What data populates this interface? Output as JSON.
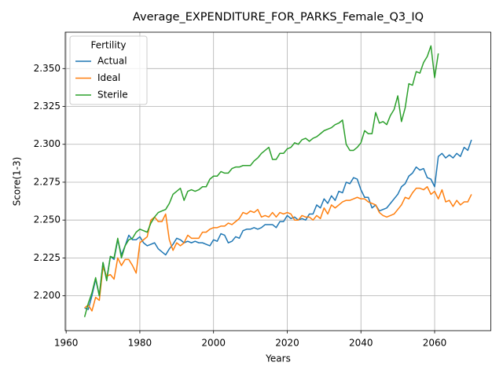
{
  "chart_data": {
    "type": "line",
    "title": "Average_EXPENDITURE_FOR_PARKS_Female_Q3_IQ",
    "xlabel": "Years",
    "ylabel": "Score(1-3)",
    "x": [
      1965,
      1966,
      1967,
      1968,
      1969,
      1970,
      1971,
      1972,
      1973,
      1974,
      1975,
      1976,
      1977,
      1978,
      1979,
      1980,
      1981,
      1982,
      1983,
      1984,
      1985,
      1986,
      1987,
      1988,
      1989,
      1990,
      1991,
      1992,
      1993,
      1994,
      1995,
      1996,
      1997,
      1998,
      1999,
      2000,
      2001,
      2002,
      2003,
      2004,
      2005,
      2006,
      2007,
      2008,
      2009,
      2010,
      2011,
      2012,
      2013,
      2014,
      2015,
      2016,
      2017,
      2018,
      2019,
      2020,
      2021,
      2022,
      2023,
      2024,
      2025,
      2026,
      2027,
      2028,
      2029,
      2030,
      2031,
      2032,
      2033,
      2034,
      2035,
      2036,
      2037,
      2038,
      2039,
      2040,
      2041,
      2042,
      2043,
      2044,
      2045,
      2046,
      2047,
      2048,
      2049,
      2050,
      2051,
      2052,
      2053,
      2054,
      2055,
      2056,
      2057,
      2058,
      2059,
      2060,
      2061,
      2062,
      2063,
      2064,
      2065,
      2066,
      2067,
      2068,
      2069,
      2070
    ],
    "series": [
      {
        "name": "Actual",
        "color": "#1f77b4",
        "values": [
          2.192,
          2.191,
          2.2,
          2.211,
          2.2,
          2.222,
          2.211,
          2.226,
          2.224,
          2.237,
          2.227,
          2.233,
          2.24,
          2.237,
          2.237,
          2.239,
          2.235,
          2.233,
          2.234,
          2.235,
          2.231,
          2.229,
          2.227,
          2.231,
          2.234,
          2.238,
          2.237,
          2.235,
          2.236,
          2.235,
          2.236,
          2.235,
          2.235,
          2.234,
          2.233,
          2.237,
          2.236,
          2.241,
          2.24,
          2.235,
          2.236,
          2.239,
          2.238,
          2.243,
          2.244,
          2.244,
          2.245,
          2.244,
          2.245,
          2.247,
          2.247,
          2.247,
          2.245,
          2.249,
          2.249,
          2.253,
          2.251,
          2.252,
          2.25,
          2.251,
          2.25,
          2.254,
          2.254,
          2.26,
          2.258,
          2.264,
          2.261,
          2.266,
          2.263,
          2.269,
          2.268,
          2.275,
          2.274,
          2.278,
          2.277,
          2.27,
          2.265,
          2.265,
          2.258,
          2.26,
          2.256,
          2.257,
          2.258,
          2.261,
          2.264,
          2.267,
          2.272,
          2.274,
          2.279,
          2.281,
          2.285,
          2.283,
          2.284,
          2.278,
          2.277,
          2.272,
          2.292,
          2.294,
          2.291,
          2.293,
          2.291,
          2.294,
          2.292,
          2.298,
          2.296,
          2.303
        ]
      },
      {
        "name": "Ideal",
        "color": "#ff7f0e",
        "values": [
          2.192,
          2.194,
          2.19,
          2.199,
          2.197,
          2.219,
          2.213,
          2.214,
          2.211,
          2.225,
          2.22,
          2.224,
          2.224,
          2.22,
          2.215,
          2.235,
          2.237,
          2.239,
          2.25,
          2.252,
          2.249,
          2.249,
          2.254,
          2.237,
          2.23,
          2.235,
          2.233,
          2.235,
          2.24,
          2.238,
          2.238,
          2.238,
          2.242,
          2.242,
          2.244,
          2.245,
          2.245,
          2.246,
          2.246,
          2.248,
          2.247,
          2.249,
          2.251,
          2.255,
          2.254,
          2.256,
          2.255,
          2.257,
          2.252,
          2.253,
          2.252,
          2.255,
          2.252,
          2.255,
          2.254,
          2.255,
          2.254,
          2.25,
          2.25,
          2.253,
          2.252,
          2.252,
          2.25,
          2.253,
          2.251,
          2.258,
          2.254,
          2.26,
          2.258,
          2.26,
          2.262,
          2.263,
          2.263,
          2.264,
          2.265,
          2.264,
          2.264,
          2.262,
          2.261,
          2.26,
          2.255,
          2.253,
          2.252,
          2.253,
          2.254,
          2.257,
          2.26,
          2.265,
          2.264,
          2.268,
          2.271,
          2.271,
          2.27,
          2.272,
          2.267,
          2.269,
          2.264,
          2.27,
          2.262,
          2.263,
          2.259,
          2.263,
          2.26,
          2.262,
          2.262,
          2.267
        ]
      },
      {
        "name": "Sterile",
        "color": "#2ca02c",
        "values": [
          2.186,
          2.195,
          2.202,
          2.212,
          2.2,
          2.222,
          2.21,
          2.226,
          2.225,
          2.238,
          2.225,
          2.233,
          2.237,
          2.238,
          2.242,
          2.244,
          2.243,
          2.242,
          2.248,
          2.252,
          2.255,
          2.256,
          2.257,
          2.261,
          2.267,
          2.269,
          2.271,
          2.263,
          2.269,
          2.27,
          2.269,
          2.27,
          2.272,
          2.272,
          2.277,
          2.279,
          2.279,
          2.282,
          2.281,
          2.281,
          2.284,
          2.285,
          2.285,
          2.286,
          2.286,
          2.286,
          2.289,
          2.291,
          2.294,
          2.296,
          2.298,
          2.29,
          2.29,
          2.294,
          2.294,
          2.297,
          2.298,
          2.301,
          2.3,
          2.303,
          2.304,
          2.302,
          2.304,
          2.305,
          2.307,
          2.309,
          2.31,
          2.311,
          2.313,
          2.314,
          2.316,
          2.3,
          2.296,
          2.296,
          2.298,
          2.301,
          2.309,
          2.307,
          2.307,
          2.321,
          2.314,
          2.315,
          2.313,
          2.319,
          2.323,
          2.332,
          2.315,
          2.324,
          2.34,
          2.339,
          2.348,
          2.347,
          2.354,
          2.358,
          2.365,
          2.344,
          2.36,
          null,
          null,
          null,
          null,
          null,
          null,
          null,
          null,
          null
        ]
      }
    ],
    "xlim": [
      1959.75,
      2075.25
    ],
    "xticks": [
      1960,
      1980,
      2000,
      2020,
      2040,
      2060
    ],
    "ylim": [
      2.177,
      2.374
    ],
    "yticks": [
      {
        "value": 2.2,
        "label": "2.200"
      },
      2.225,
      {
        "value": 2.25,
        "label": "2.250"
      },
      2.275,
      {
        "value": 2.3,
        "label": "2.300"
      },
      2.325,
      {
        "value": 2.35,
        "label": "2.350"
      }
    ],
    "grid": true,
    "legend": {
      "title": "Fertility",
      "loc": "upper left"
    }
  }
}
